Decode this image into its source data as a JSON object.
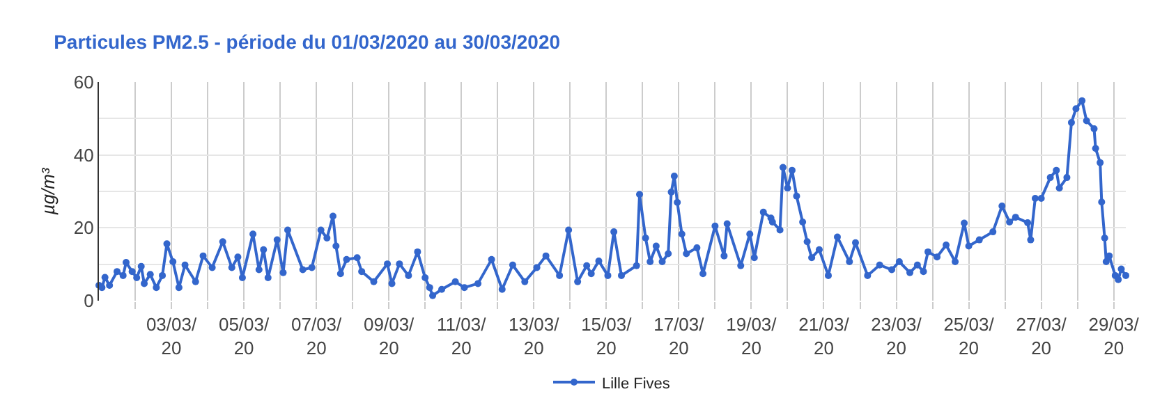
{
  "chart_data": {
    "type": "line",
    "title": "Particules PM2.5 - période du 01/03/2020 au 30/03/2020",
    "ylabel": "µg/m³",
    "x": [
      "2020-03-01T00:00",
      "2020-03-01T02:00",
      "2020-03-01T04:00",
      "2020-03-01T07:00",
      "2020-03-01T12:00",
      "2020-03-01T16:00",
      "2020-03-01T18:00",
      "2020-03-01T22:00",
      "2020-03-02T01:00",
      "2020-03-02T04:00",
      "2020-03-02T06:00",
      "2020-03-02T10:00",
      "2020-03-02T14:00",
      "2020-03-02T18:00",
      "2020-03-02T21:00",
      "2020-03-03T01:00",
      "2020-03-03T05:00",
      "2020-03-03T09:00",
      "2020-03-03T16:00",
      "2020-03-03T21:00",
      "2020-03-04T03:00",
      "2020-03-04T10:00",
      "2020-03-04T16:00",
      "2020-03-04T20:00",
      "2020-03-04T23:00",
      "2020-03-05T06:00",
      "2020-03-05T10:00",
      "2020-03-05T13:00",
      "2020-03-05T16:00",
      "2020-03-05T22:00",
      "2020-03-06T02:00",
      "2020-03-06T05:00",
      "2020-03-06T15:00",
      "2020-03-06T21:00",
      "2020-03-07T03:00",
      "2020-03-07T07:00",
      "2020-03-07T11:00",
      "2020-03-07T13:00",
      "2020-03-07T16:00",
      "2020-03-07T20:00",
      "2020-03-08T03:00",
      "2020-03-08T06:00",
      "2020-03-08T14:00",
      "2020-03-08T23:00",
      "2020-03-09T02:00",
      "2020-03-09T07:00",
      "2020-03-09T13:00",
      "2020-03-09T19:00",
      "2020-03-10T00:00",
      "2020-03-10T03:00",
      "2020-03-10T05:00",
      "2020-03-10T11:00",
      "2020-03-10T20:00",
      "2020-03-11T02:00",
      "2020-03-11T11:00",
      "2020-03-11T20:00",
      "2020-03-12T03:00",
      "2020-03-12T10:00",
      "2020-03-12T18:00",
      "2020-03-13T02:00",
      "2020-03-13T08:00",
      "2020-03-13T17:00",
      "2020-03-13T23:00",
      "2020-03-14T05:00",
      "2020-03-14T11:00",
      "2020-03-14T14:00",
      "2020-03-14T19:00",
      "2020-03-15T01:00",
      "2020-03-15T05:00",
      "2020-03-15T10:00",
      "2020-03-15T20:00",
      "2020-03-15T22:00",
      "2020-03-16T02:00",
      "2020-03-16T05:00",
      "2020-03-16T09:00",
      "2020-03-16T13:00",
      "2020-03-16T17:00",
      "2020-03-16T19:00",
      "2020-03-16T21:00",
      "2020-03-16T23:00",
      "2020-03-17T02:00",
      "2020-03-17T05:00",
      "2020-03-17T12:00",
      "2020-03-17T16:00",
      "2020-03-18T00:00",
      "2020-03-18T06:00",
      "2020-03-18T08:00",
      "2020-03-18T17:00",
      "2020-03-18T23:00",
      "2020-03-19T02:00",
      "2020-03-19T08:00",
      "2020-03-19T13:00",
      "2020-03-19T14:00",
      "2020-03-19T19:00",
      "2020-03-19T21:00",
      "2020-03-20T00:00",
      "2020-03-20T03:00",
      "2020-03-20T06:00",
      "2020-03-20T10:00",
      "2020-03-20T13:00",
      "2020-03-20T16:00",
      "2020-03-20T21:00",
      "2020-03-21T03:00",
      "2020-03-21T09:00",
      "2020-03-21T17:00",
      "2020-03-21T21:00",
      "2020-03-22T05:00",
      "2020-03-22T13:00",
      "2020-03-22T21:00",
      "2020-03-23T02:00",
      "2020-03-23T09:00",
      "2020-03-23T14:00",
      "2020-03-23T18:00",
      "2020-03-23T21:00",
      "2020-03-24T03:00",
      "2020-03-24T09:00",
      "2020-03-24T15:00",
      "2020-03-24T21:00",
      "2020-03-25T00:00",
      "2020-03-25T07:00",
      "2020-03-25T16:00",
      "2020-03-25T22:00",
      "2020-03-26T03:00",
      "2020-03-26T07:00",
      "2020-03-26T15:00",
      "2020-03-26T17:00",
      "2020-03-26T20:00",
      "2020-03-27T00:00",
      "2020-03-27T06:00",
      "2020-03-27T10:00",
      "2020-03-27T12:00",
      "2020-03-27T17:00",
      "2020-03-27T20:00",
      "2020-03-27T23:00",
      "2020-03-28T03:00",
      "2020-03-28T06:00",
      "2020-03-28T11:00",
      "2020-03-28T12:00",
      "2020-03-28T15:00",
      "2020-03-28T16:00",
      "2020-03-28T18:00",
      "2020-03-28T19:00",
      "2020-03-28T21:00",
      "2020-03-29T01:00",
      "2020-03-29T03:00",
      "2020-03-29T05:00",
      "2020-03-29T08:00"
    ],
    "series": [
      {
        "name": "Lille Fives",
        "color": "#3366cc",
        "values": [
          4.2,
          3.6,
          6.4,
          4.2,
          8,
          6.9,
          10.5,
          8,
          6.3,
          9.4,
          4.7,
          7.2,
          3.6,
          6.9,
          15.6,
          10.7,
          3.6,
          9.8,
          5.2,
          12.3,
          9.1,
          16.2,
          9.1,
          12,
          6.3,
          18.3,
          8.5,
          14,
          6.3,
          16.7,
          7.7,
          19.4,
          8.5,
          9.1,
          19.4,
          17.2,
          23.2,
          15,
          7.4,
          11.3,
          11.8,
          8,
          5.2,
          10.1,
          4.7,
          10.1,
          6.9,
          13.4,
          6.3,
          3.6,
          1.4,
          3.1,
          5.2,
          3.6,
          4.7,
          11.3,
          3.1,
          9.8,
          5.2,
          9.1,
          12.3,
          6.9,
          19.4,
          5.2,
          9.6,
          7.4,
          10.9,
          6.9,
          18.9,
          6.9,
          9.6,
          29.2,
          17.2,
          10.7,
          15,
          10.7,
          12.9,
          29.8,
          34.2,
          27,
          18.3,
          12.9,
          14.5,
          7.4,
          20.5,
          12.3,
          21.1,
          9.6,
          18.3,
          11.8,
          24.3,
          22.7,
          21.6,
          19.4,
          36.6,
          30.9,
          35.8,
          28.7,
          21.6,
          16.2,
          11.8,
          14,
          6.9,
          17.5,
          10.7,
          15.9,
          6.9,
          9.8,
          8.5,
          10.7,
          7.7,
          9.8,
          8,
          13.4,
          12,
          15.3,
          10.7,
          21.3,
          15,
          16.7,
          18.9,
          26,
          21.6,
          22.9,
          21.4,
          16.7,
          28.1,
          28.1,
          33.8,
          35.8,
          30.9,
          33.8,
          48.9,
          52.7,
          54.9,
          49.4,
          47.2,
          41.8,
          37.9,
          27.1,
          17.2,
          10.7,
          12.3,
          6.9,
          5.8,
          8.7,
          6.9
        ]
      }
    ],
    "xlim": [
      "2020-03-01T00:00",
      "2020-03-29T08:00"
    ],
    "xticks": [
      {
        "value": "2020-03-02",
        "label": null
      },
      {
        "value": "2020-03-03",
        "label": "03/03/20"
      },
      {
        "value": "2020-03-04",
        "label": null
      },
      {
        "value": "2020-03-05",
        "label": "05/03/20"
      },
      {
        "value": "2020-03-06",
        "label": null
      },
      {
        "value": "2020-03-07",
        "label": "07/03/20"
      },
      {
        "value": "2020-03-08",
        "label": null
      },
      {
        "value": "2020-03-09",
        "label": "09/03/20"
      },
      {
        "value": "2020-03-10",
        "label": null
      },
      {
        "value": "2020-03-11",
        "label": "11/03/20"
      },
      {
        "value": "2020-03-12",
        "label": null
      },
      {
        "value": "2020-03-13",
        "label": "13/03/20"
      },
      {
        "value": "2020-03-14",
        "label": null
      },
      {
        "value": "2020-03-15",
        "label": "15/03/20"
      },
      {
        "value": "2020-03-16",
        "label": null
      },
      {
        "value": "2020-03-17",
        "label": "17/03/20"
      },
      {
        "value": "2020-03-18",
        "label": null
      },
      {
        "value": "2020-03-19",
        "label": "19/03/20"
      },
      {
        "value": "2020-03-20",
        "label": null
      },
      {
        "value": "2020-03-21",
        "label": "21/03/20"
      },
      {
        "value": "2020-03-22",
        "label": null
      },
      {
        "value": "2020-03-23",
        "label": "23/03/20"
      },
      {
        "value": "2020-03-24",
        "label": null
      },
      {
        "value": "2020-03-25",
        "label": "25/03/20"
      },
      {
        "value": "2020-03-26",
        "label": null
      },
      {
        "value": "2020-03-27",
        "label": "27/03/20"
      },
      {
        "value": "2020-03-28",
        "label": null
      },
      {
        "value": "2020-03-29",
        "label": "29/03/20"
      }
    ],
    "ylim": [
      0,
      60
    ],
    "yticks": [
      0,
      {
        "value": 10,
        "label": null
      },
      20,
      {
        "value": 30,
        "label": null
      },
      40,
      {
        "value": 50,
        "label": null
      },
      60
    ],
    "grid": true,
    "legend": "bottom",
    "marker": "circle",
    "line_style": "solid"
  }
}
